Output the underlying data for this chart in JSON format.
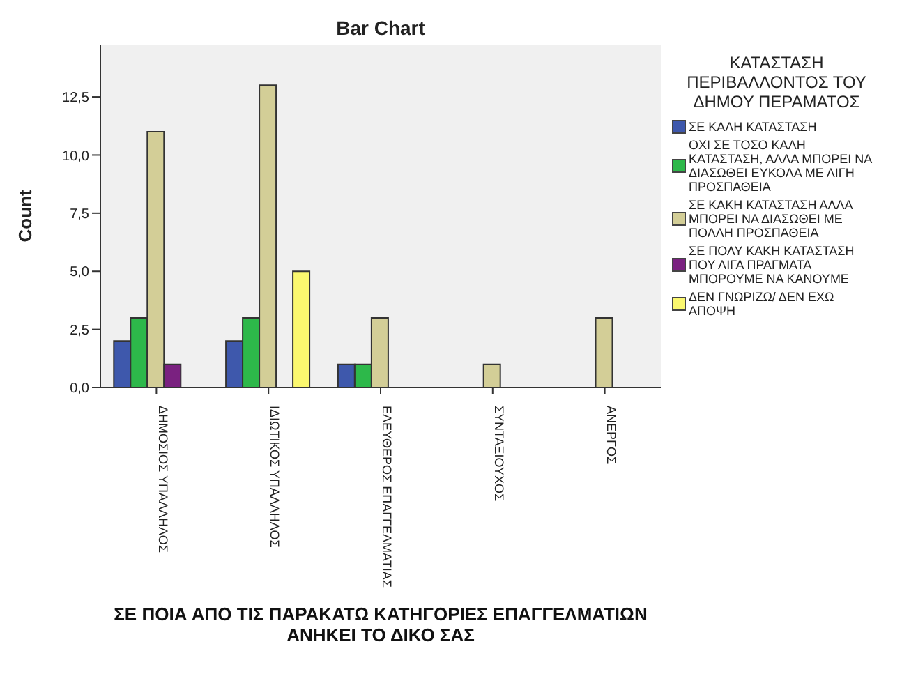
{
  "chart_data": {
    "type": "bar",
    "title": "Bar Chart",
    "xlabel": "ΣΕ ΠΟΙΑ ΑΠΟ ΤΙΣ ΠΑΡΑΚΑΤΩ ΚΑΤΗΓΟΡΙΕΣ ΕΠΑΓΓΕΛΜΑΤΙΩΝ ΑΝΗΚΕΙ ΤΟ ΔΙΚΟ ΣΑΣ",
    "ylabel": "Count",
    "legend_title": "ΚΑΤΑΣΤΑΣΗ ΠΕΡΙΒΑΛΛΟΝΤΟΣ ΤΟΥ ΔΗΜΟΥ ΠΕΡΑΜΑΤΟΣ",
    "categories": [
      "ΔΗΜΟΣΙΟΣ ΥΠΑΛΛΗΛΟΣ",
      "ΙΔΙΩΤΙΚΟΣ ΥΠΑΛΛΗΛΟΣ",
      "ΕΛΕΥΘΕΡΟΣ ΕΠΑΓΓΕΛΜΑΤΙΑΣ",
      "ΣΥΝΤΑΞΙΟΥΧΟΣ",
      "ΑΝΕΡΓΟΣ"
    ],
    "series": [
      {
        "name": "ΣΕ ΚΑΛΗ ΚΑΤΑΣΤΑΣΗ",
        "color": "#3e58ac",
        "values": [
          2,
          2,
          1,
          null,
          null
        ]
      },
      {
        "name": "ΟΧΙ ΣΕ ΤΟΣΟ ΚΑΛΗ ΚΑΤΑΣΤΑΣΗ, ΑΛΛΑ ΜΠΟΡΕΙ ΝΑ ΔΙΑΣΩΘΕΙ ΕΥΚΟΛΑ ΜΕ ΛΙΓΗ ΠΡΟΣΠΑΘΕΙΑ",
        "color": "#2db84a",
        "values": [
          3,
          3,
          1,
          null,
          null
        ]
      },
      {
        "name": "ΣΕ ΚΑΚΗ ΚΑΤΑΣΤΑΣΗ ΑΛΛΑ ΜΠΟΡΕΙ ΝΑ ΔΙΑΣΩΘΕΙ ΜΕ ΠΟΛΛΗ ΠΡΟΣΠΑΘΕΙΑ",
        "color": "#d3ce97",
        "values": [
          11,
          13,
          3,
          1,
          3
        ]
      },
      {
        "name": "ΣΕ ΠΟΛΥ ΚΑΚΗ ΚΑΤΑΣΤΑΣΗ ΠΟΥ ΛΙΓΑ ΠΡΑΓΜΑΤΑ ΜΠΟΡΟΥΜΕ ΝΑ ΚΑΝΟΥΜΕ",
        "color": "#7a2180",
        "values": [
          1,
          null,
          null,
          null,
          null
        ]
      },
      {
        "name": "ΔΕΝ ΓΝΩΡΙΖΩ/ ΔΕΝ ΕΧΩ ΑΠΟΨΗ",
        "color": "#fbf86f",
        "values": [
          null,
          5,
          null,
          null,
          null
        ]
      }
    ],
    "ylim": [
      0,
      14.75
    ],
    "yticks": [
      {
        "value": 0,
        "label": "0,0"
      },
      {
        "value": 2.5,
        "label": "2,5"
      },
      {
        "value": 5,
        "label": "5,0"
      },
      {
        "value": 7.5,
        "label": "7,5"
      },
      {
        "value": 10,
        "label": "10,0"
      },
      {
        "value": 12.5,
        "label": "12,5"
      }
    ],
    "grid": false,
    "legend": "right"
  }
}
